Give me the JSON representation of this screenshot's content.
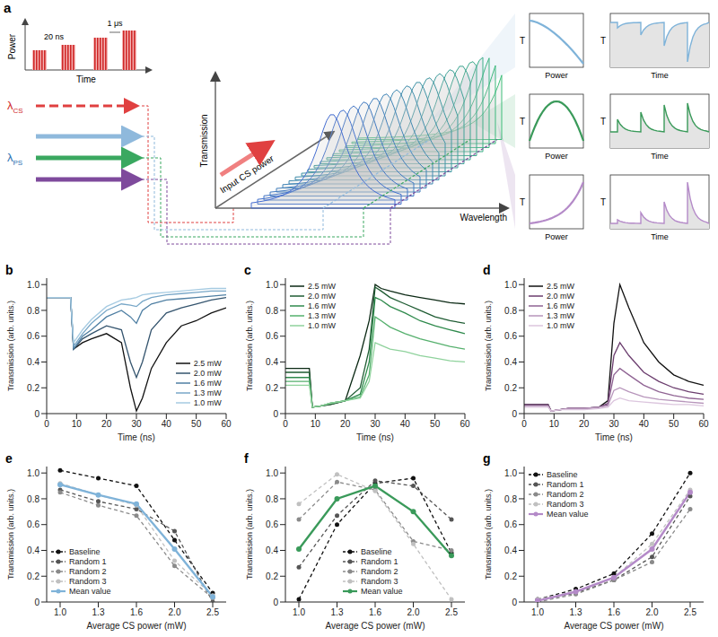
{
  "diagram": {
    "label": "a",
    "pulse_plot": {
      "y_label": "Power",
      "x_label": "Time",
      "spacing_label": "20 ns",
      "period_label": "1 μs"
    },
    "control": {
      "symbol": "λ",
      "subscript": "CS"
    },
    "probe": {
      "symbol": "λ",
      "subscript": "PS"
    },
    "axes": {
      "vertical": "Transmission",
      "depth": "Input CS power",
      "horizontal": "Wavelength"
    },
    "insets": {
      "y_label": "T",
      "power_label": "Power",
      "time_label": "Time"
    }
  },
  "chart_data": [
    {
      "label": "b",
      "type": "line",
      "x_label": "Time (ns)",
      "y_label": "Transmission (arb. units.)",
      "x": [
        0,
        8,
        9,
        12,
        15,
        20,
        25,
        28,
        30,
        32,
        35,
        40,
        45,
        50,
        55,
        60
      ],
      "xlim": [
        0,
        60
      ],
      "xticks": [
        0,
        10,
        20,
        30,
        40,
        50,
        60
      ],
      "ylim": [
        0,
        1.05
      ],
      "yticks": [
        0,
        0.2,
        0.4,
        0.6,
        0.8,
        {
          "value": 1,
          "label": "1.0"
        }
      ],
      "legend": "lower right",
      "series": [
        {
          "name": "2.5 mW",
          "color": "#111111",
          "values": [
            0.9,
            0.9,
            0.5,
            0.55,
            0.58,
            0.62,
            0.55,
            0.2,
            0.02,
            0.12,
            0.35,
            0.55,
            0.68,
            0.72,
            0.78,
            0.82
          ]
        },
        {
          "name": "2.0 mW",
          "color": "#34546e",
          "values": [
            0.9,
            0.9,
            0.5,
            0.58,
            0.62,
            0.68,
            0.65,
            0.4,
            0.28,
            0.4,
            0.65,
            0.78,
            0.82,
            0.85,
            0.88,
            0.9
          ]
        },
        {
          "name": "1.6 mW",
          "color": "#4f7fa3",
          "values": [
            0.9,
            0.9,
            0.5,
            0.6,
            0.65,
            0.75,
            0.8,
            0.75,
            0.7,
            0.8,
            0.85,
            0.88,
            0.89,
            0.9,
            0.91,
            0.92
          ]
        },
        {
          "name": "1.3 mW",
          "color": "#78a7c8",
          "values": [
            0.9,
            0.9,
            0.52,
            0.62,
            0.7,
            0.8,
            0.85,
            0.84,
            0.83,
            0.87,
            0.9,
            0.92,
            0.93,
            0.94,
            0.95,
            0.95
          ]
        },
        {
          "name": "1.0 mW",
          "color": "#a6cbe2",
          "values": [
            0.9,
            0.9,
            0.55,
            0.65,
            0.73,
            0.83,
            0.88,
            0.89,
            0.9,
            0.92,
            0.93,
            0.94,
            0.95,
            0.96,
            0.97,
            0.97
          ]
        }
      ]
    },
    {
      "label": "c",
      "type": "line",
      "x_label": "Time (ns)",
      "y_label": "Transmission (arb. units.)",
      "x": [
        0,
        8,
        9,
        12,
        15,
        20,
        25,
        28,
        30,
        32,
        35,
        40,
        45,
        50,
        55,
        60
      ],
      "xlim": [
        0,
        60
      ],
      "xticks": [
        0,
        10,
        20,
        30,
        40,
        50,
        60
      ],
      "ylim": [
        0,
        1.05
      ],
      "yticks": [
        0,
        0.2,
        0.4,
        0.6,
        0.8,
        {
          "value": 1,
          "label": "1.0"
        }
      ],
      "legend": "upper left",
      "series": [
        {
          "name": "2.5 mW",
          "color": "#0b2914",
          "values": [
            0.35,
            0.35,
            0.05,
            0.06,
            0.07,
            0.1,
            0.45,
            0.72,
            1.0,
            0.97,
            0.95,
            0.92,
            0.9,
            0.88,
            0.86,
            0.85
          ]
        },
        {
          "name": "2.0 mW",
          "color": "#1f5c33",
          "values": [
            0.32,
            0.32,
            0.05,
            0.06,
            0.07,
            0.1,
            0.2,
            0.5,
            0.98,
            0.95,
            0.9,
            0.85,
            0.8,
            0.75,
            0.72,
            0.7
          ]
        },
        {
          "name": "1.6 mW",
          "color": "#2f8a4c",
          "values": [
            0.28,
            0.28,
            0.05,
            0.06,
            0.08,
            0.1,
            0.15,
            0.4,
            0.9,
            0.88,
            0.83,
            0.78,
            0.72,
            0.68,
            0.65,
            0.62
          ]
        },
        {
          "name": "1.3 mW",
          "color": "#55b06d",
          "values": [
            0.25,
            0.25,
            0.05,
            0.06,
            0.08,
            0.1,
            0.13,
            0.3,
            0.75,
            0.72,
            0.67,
            0.62,
            0.58,
            0.55,
            0.52,
            0.5
          ]
        },
        {
          "name": "1.0 mW",
          "color": "#8fd29c",
          "values": [
            0.22,
            0.22,
            0.05,
            0.06,
            0.08,
            0.1,
            0.12,
            0.25,
            0.55,
            0.53,
            0.5,
            0.48,
            0.45,
            0.43,
            0.41,
            0.4
          ]
        }
      ]
    },
    {
      "label": "d",
      "type": "line",
      "x_label": "Time (ns)",
      "y_label": "Transmission (arb. units.)",
      "x": [
        0,
        8,
        9,
        12,
        15,
        20,
        25,
        28,
        30,
        32,
        35,
        40,
        45,
        50,
        55,
        60
      ],
      "xlim": [
        0,
        60
      ],
      "xticks": [
        0,
        10,
        20,
        30,
        40,
        50,
        60
      ],
      "ylim": [
        0,
        1.05
      ],
      "yticks": [
        0,
        0.2,
        0.4,
        0.6,
        0.8,
        {
          "value": 1,
          "label": "1.0"
        }
      ],
      "legend": "upper left",
      "series": [
        {
          "name": "2.5 mW",
          "color": "#111111",
          "values": [
            0.07,
            0.07,
            0.02,
            0.03,
            0.04,
            0.04,
            0.05,
            0.1,
            0.7,
            1.0,
            0.82,
            0.55,
            0.4,
            0.3,
            0.25,
            0.22
          ]
        },
        {
          "name": "2.0 mW",
          "color": "#6b3d6e",
          "values": [
            0.07,
            0.07,
            0.02,
            0.03,
            0.04,
            0.04,
            0.05,
            0.08,
            0.45,
            0.55,
            0.45,
            0.32,
            0.25,
            0.2,
            0.17,
            0.15
          ]
        },
        {
          "name": "1.6 mW",
          "color": "#8f6393",
          "values": [
            0.06,
            0.06,
            0.02,
            0.03,
            0.04,
            0.04,
            0.05,
            0.07,
            0.3,
            0.35,
            0.3,
            0.22,
            0.17,
            0.14,
            0.12,
            0.11
          ]
        },
        {
          "name": "1.3 mW",
          "color": "#b795bb",
          "values": [
            0.06,
            0.06,
            0.02,
            0.03,
            0.04,
            0.04,
            0.05,
            0.06,
            0.18,
            0.2,
            0.17,
            0.13,
            0.11,
            0.1,
            0.09,
            0.08
          ]
        },
        {
          "name": "1.0 mW",
          "color": "#dcc6de",
          "values": [
            0.05,
            0.05,
            0.02,
            0.03,
            0.03,
            0.03,
            0.04,
            0.05,
            0.1,
            0.12,
            0.1,
            0.09,
            0.08,
            0.07,
            0.07,
            0.06
          ]
        }
      ]
    },
    {
      "label": "e",
      "type": "line",
      "x_label": "Average CS power (mW)",
      "y_label": "Transmission (arb. units.)",
      "categories": [
        "1.0",
        "1.3",
        "1.6",
        "2.0",
        "2.5"
      ],
      "ylim": [
        0,
        1.05
      ],
      "yticks": [
        0,
        0.2,
        0.4,
        0.6,
        0.8,
        {
          "value": 1,
          "label": "1.0"
        }
      ],
      "legend": "lower left",
      "series": [
        {
          "name": "Baseline",
          "color": "#111111",
          "line_style": "dashed",
          "marker": "circle",
          "values": [
            1.02,
            0.96,
            0.9,
            0.48,
            0.07
          ]
        },
        {
          "name": "Random 1",
          "color": "#555555",
          "line_style": "dashed",
          "marker": "circle",
          "values": [
            0.87,
            0.78,
            0.72,
            0.55,
            0.0
          ]
        },
        {
          "name": "Random 2",
          "color": "#8a8a8a",
          "line_style": "dashed",
          "marker": "circle",
          "values": [
            0.85,
            0.75,
            0.67,
            0.28,
            0.03
          ]
        },
        {
          "name": "Random 3",
          "color": "#c0c0c0",
          "line_style": "dashed",
          "marker": "circle",
          "values": [
            0.92,
            0.83,
            0.75,
            0.32,
            0.05
          ]
        },
        {
          "name": "Mean value",
          "color": "#7fb3d9",
          "line_style": "solid",
          "marker": "circle",
          "values": [
            0.91,
            0.83,
            0.76,
            0.41,
            0.04
          ]
        }
      ]
    },
    {
      "label": "f",
      "type": "line",
      "x_label": "Average CS power (mW)",
      "y_label": "Transmission (arb. units.)",
      "categories": [
        "1.0",
        "1.3",
        "1.6",
        "2.0",
        "2.5"
      ],
      "ylim": [
        0,
        1.05
      ],
      "yticks": [
        0,
        0.2,
        0.4,
        0.6,
        0.8,
        {
          "value": 1,
          "label": "1.0"
        }
      ],
      "legend": "lower center",
      "series": [
        {
          "name": "Baseline",
          "color": "#111111",
          "line_style": "dashed",
          "marker": "circle",
          "values": [
            0.02,
            0.6,
            0.92,
            0.96,
            0.38
          ]
        },
        {
          "name": "Random 1",
          "color": "#555555",
          "line_style": "dashed",
          "marker": "circle",
          "values": [
            0.27,
            0.67,
            0.94,
            0.9,
            0.64
          ]
        },
        {
          "name": "Random 2",
          "color": "#8a8a8a",
          "line_style": "dashed",
          "marker": "circle",
          "values": [
            0.64,
            0.93,
            0.87,
            0.47,
            0.4
          ]
        },
        {
          "name": "Random 3",
          "color": "#c0c0c0",
          "line_style": "dashed",
          "marker": "circle",
          "values": [
            0.76,
            0.99,
            0.86,
            0.45,
            0.02
          ]
        },
        {
          "name": "Mean value",
          "color": "#3a9a5a",
          "line_style": "solid",
          "marker": "circle",
          "values": [
            0.41,
            0.8,
            0.9,
            0.7,
            0.36
          ]
        }
      ]
    },
    {
      "label": "g",
      "type": "line",
      "x_label": "Average CS power (mW)",
      "y_label": "Transmission (arb. units.)",
      "categories": [
        "1.0",
        "1.3",
        "1.6",
        "2.0",
        "2.5"
      ],
      "ylim": [
        0,
        1.05
      ],
      "yticks": [
        0,
        0.2,
        0.4,
        0.6,
        0.8,
        {
          "value": 1,
          "label": "1.0"
        }
      ],
      "legend": "upper left",
      "series": [
        {
          "name": "Baseline",
          "color": "#111111",
          "line_style": "dashed",
          "marker": "circle",
          "values": [
            0.02,
            0.1,
            0.22,
            0.53,
            1.0
          ]
        },
        {
          "name": "Random 1",
          "color": "#555555",
          "line_style": "dashed",
          "marker": "circle",
          "values": [
            0.01,
            0.07,
            0.17,
            0.35,
            0.82
          ]
        },
        {
          "name": "Random 2",
          "color": "#8a8a8a",
          "line_style": "dashed",
          "marker": "circle",
          "values": [
            0.0,
            0.06,
            0.17,
            0.31,
            0.72
          ]
        },
        {
          "name": "Random 3",
          "color": "#c0c0c0",
          "line_style": "dashed",
          "marker": "circle",
          "values": [
            0.02,
            0.08,
            0.19,
            0.45,
            0.87
          ]
        },
        {
          "name": "Mean value",
          "color": "#b48ac8",
          "line_style": "solid",
          "marker": "circle",
          "values": [
            0.01,
            0.08,
            0.19,
            0.41,
            0.85
          ]
        }
      ]
    }
  ]
}
